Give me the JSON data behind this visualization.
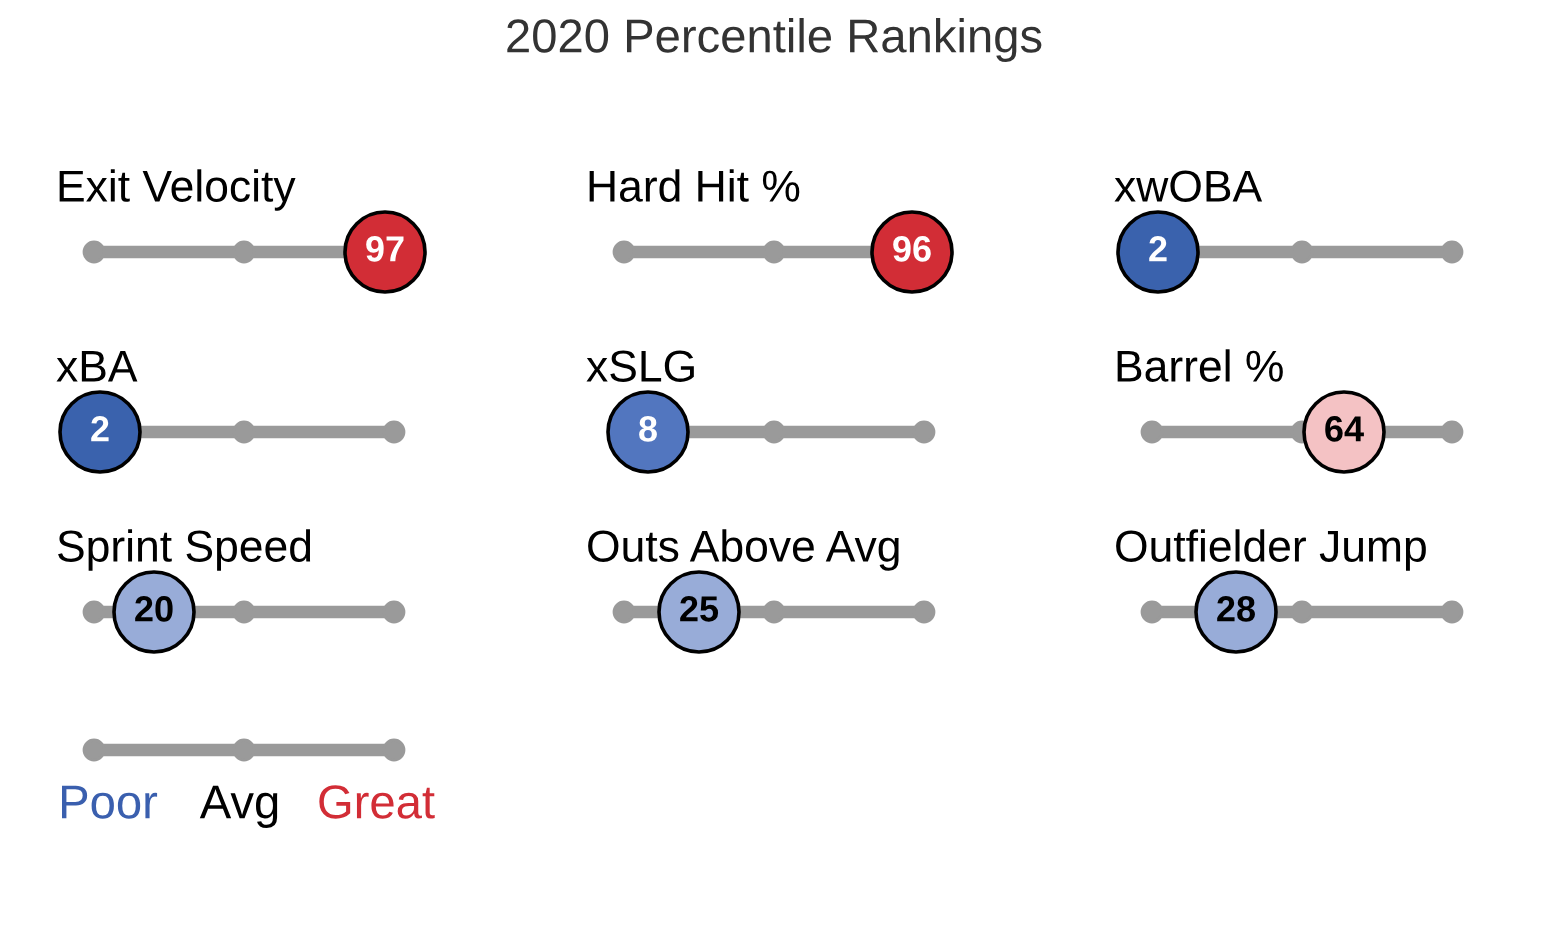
{
  "chart_data": {
    "type": "other",
    "title": "2020 Percentile Rankings",
    "categories": [
      "Exit Velocity",
      "Hard Hit %",
      "xwOBA",
      "xBA",
      "xSLG",
      "Barrel %",
      "Sprint Speed",
      "Outs Above Avg",
      "Outfielder Jump"
    ],
    "values": [
      97,
      96,
      2,
      2,
      8,
      64,
      20,
      25,
      28
    ],
    "data_labels": true,
    "colors": [
      "#d22d36",
      "#d22d36",
      "#3a62ad",
      "#3a62ad",
      "#5276bf",
      "#f4c2c4",
      "#98acd8",
      "#98acd8",
      "#98acd8"
    ],
    "annotations": [
      "Poor",
      "Avg",
      "Great"
    ]
  }
}
